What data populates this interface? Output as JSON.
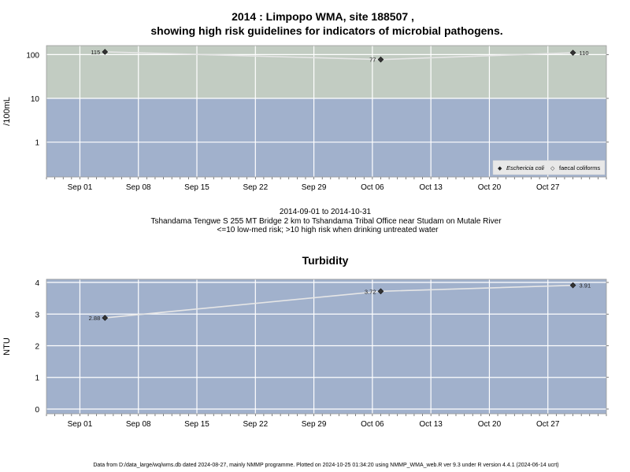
{
  "titles": {
    "top_line1": "2014 : Limpopo WMA, site 188507 ,",
    "top_line2": "showing high risk guidelines for indicators of microbial pathogens.",
    "sub_line1": "2014-09-01 to 2014-10-31",
    "sub_line2": "Tshandama Tengwe S 255 MT Bridge 2 km to Tshandama Tribal Office near Studam on Mutale River",
    "sub_line3": "<=10 low-med risk; >10 high risk when drinking untreated water",
    "bottom_title": "Turbidity",
    "footer": "Data from D:/data_large/wq/wms.db dated 2024-08-27, mainly NMMP programme. Plotted on 2024-10-25 01:34:20 using NMMP_WMA_web.R ver 9.3 under R version 4.4.1 (2024-06-14 ucrt)"
  },
  "colors": {
    "high_risk_band": "#c2ccc2",
    "low_risk_band": "#a1b1cc",
    "grid": "#ffffff",
    "line": "#e6e6e6",
    "marker": "#333333"
  },
  "chart_data": [
    {
      "type": "line",
      "title": "2014 : Limpopo WMA, site 188507 , showing high risk guidelines for indicators of microbial pathogens.",
      "ylabel": "/100mL",
      "yscale": "log",
      "ylim": [
        0.16,
        160
      ],
      "xlim": [
        "2014-08-28",
        "2014-11-03"
      ],
      "x_ticks": [
        "Sep 01",
        "Sep 08",
        "Sep 15",
        "Sep 22",
        "Sep 29",
        "Oct 06",
        "Oct 13",
        "Oct 20",
        "Oct 27"
      ],
      "x_tick_dates": [
        "2014-09-01",
        "2014-09-08",
        "2014-09-15",
        "2014-09-22",
        "2014-09-29",
        "2014-10-06",
        "2014-10-13",
        "2014-10-20",
        "2014-10-27"
      ],
      "y_ticks": [
        1,
        10,
        100
      ],
      "y_tick_labels": [
        "1",
        "10",
        "100"
      ],
      "threshold": 10,
      "threshold_bands": [
        "low-med risk (<=10)",
        "high risk (>10)"
      ],
      "grid": true,
      "legend_position": "bottom-right",
      "legend": [
        {
          "label": "Eschericia coli",
          "symbol": "◆",
          "italic": true
        },
        {
          "label": "faecal coliforms",
          "symbol": "◇",
          "italic": false
        }
      ],
      "series": [
        {
          "name": "Eschericia coli",
          "x": [
            "2014-09-04",
            "2014-10-07",
            "2014-10-30"
          ],
          "values": [
            115,
            77,
            110
          ],
          "labels": [
            "115",
            "77",
            "110"
          ]
        }
      ]
    },
    {
      "type": "line",
      "title": "Turbidity",
      "ylabel": "NTU",
      "ylim": [
        -0.15,
        4.1
      ],
      "xlim": [
        "2014-08-28",
        "2014-11-03"
      ],
      "x_ticks": [
        "Sep 01",
        "Sep 08",
        "Sep 15",
        "Sep 22",
        "Sep 29",
        "Oct 06",
        "Oct 13",
        "Oct 20",
        "Oct 27"
      ],
      "x_tick_dates": [
        "2014-09-01",
        "2014-09-08",
        "2014-09-15",
        "2014-09-22",
        "2014-09-29",
        "2014-10-06",
        "2014-10-13",
        "2014-10-20",
        "2014-10-27"
      ],
      "y_ticks": [
        0,
        1,
        2,
        3,
        4
      ],
      "y_tick_labels": [
        "0",
        "1",
        "2",
        "3",
        "4"
      ],
      "grid": true,
      "series": [
        {
          "x": [
            "2014-09-04",
            "2014-10-07",
            "2014-10-30"
          ],
          "values": [
            2.88,
            3.72,
            3.91
          ],
          "labels": [
            "2.88",
            "3.72",
            "3.91"
          ]
        }
      ]
    }
  ]
}
